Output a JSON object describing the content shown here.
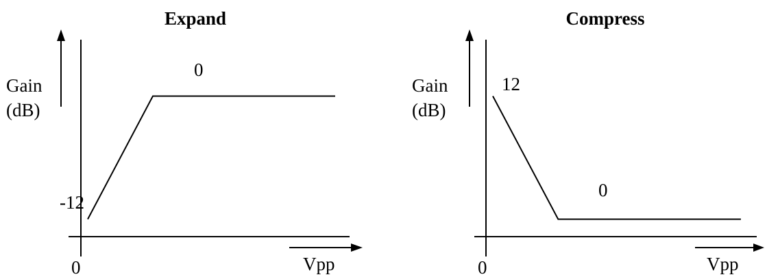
{
  "chart_data": [
    {
      "type": "line",
      "title": "Expand",
      "ylabel_line1": "Gain",
      "ylabel_line2": "(dB)",
      "xlabel": "Vpp",
      "x_origin_label": "0",
      "annotations": {
        "start": "-12",
        "plateau": "0"
      },
      "series": [
        {
          "x": [
            0,
            1,
            3.8
          ],
          "y": [
            -12,
            0,
            0
          ]
        }
      ],
      "xlim": [
        -0.2,
        4.2
      ],
      "ylim": [
        -15.5,
        2.5
      ],
      "grid": false,
      "legend": "none"
    },
    {
      "type": "line",
      "title": "Compress",
      "ylabel_line1": "Gain",
      "ylabel_line2": "(dB)",
      "xlabel": "Vpp",
      "x_origin_label": "0",
      "annotations": {
        "start": "12",
        "plateau": "0"
      },
      "series": [
        {
          "x": [
            0,
            1,
            3.8
          ],
          "y": [
            12,
            0,
            0
          ]
        }
      ],
      "xlim": [
        -0.2,
        4.2
      ],
      "ylim": [
        -3.5,
        14.5
      ],
      "grid": false,
      "legend": "none"
    }
  ]
}
